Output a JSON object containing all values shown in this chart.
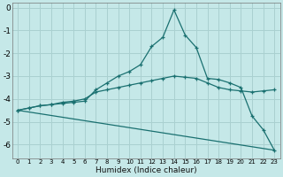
{
  "xlabel": "Humidex (Indice chaleur)",
  "background_color": "#c5e8e8",
  "grid_color": "#aad0d0",
  "line_color": "#1a7070",
  "x_ticks": [
    0,
    1,
    2,
    3,
    4,
    5,
    6,
    7,
    8,
    9,
    10,
    11,
    12,
    13,
    14,
    15,
    16,
    17,
    18,
    19,
    20,
    21,
    22,
    23
  ],
  "y_ticks": [
    0,
    -1,
    -2,
    -3,
    -4,
    -5,
    -6
  ],
  "ylim": [
    -6.6,
    0.2
  ],
  "xlim": [
    -0.5,
    23.5
  ],
  "series1_x": [
    0,
    1,
    2,
    3,
    4,
    5,
    6,
    7,
    8,
    9,
    10,
    11,
    12,
    13,
    14,
    15,
    16,
    17,
    18,
    19,
    20,
    21,
    22,
    23
  ],
  "series1_y": [
    -4.5,
    -4.4,
    -4.3,
    -4.25,
    -4.15,
    -4.1,
    -4.0,
    -3.7,
    -3.6,
    -3.5,
    -3.4,
    -3.3,
    -3.2,
    -3.1,
    -3.0,
    -3.05,
    -3.1,
    -3.3,
    -3.5,
    -3.6,
    -3.65,
    -3.7,
    -3.65,
    -3.6
  ],
  "series2_x": [
    0,
    1,
    2,
    3,
    4,
    5,
    6,
    7,
    8,
    9,
    10,
    11,
    12,
    13,
    14,
    15,
    16,
    17,
    18,
    19,
    20,
    21,
    22,
    23
  ],
  "series2_y": [
    -4.5,
    -4.4,
    -4.3,
    -4.25,
    -4.2,
    -4.15,
    -4.1,
    -3.6,
    -3.3,
    -3.0,
    -2.8,
    -2.5,
    -1.7,
    -1.3,
    -0.1,
    -1.2,
    -1.75,
    -3.1,
    -3.15,
    -3.3,
    -3.5,
    -4.75,
    -5.35,
    -6.25
  ],
  "series3_x": [
    0,
    23
  ],
  "series3_y": [
    -4.5,
    -6.25
  ],
  "series3_has_markers": false
}
